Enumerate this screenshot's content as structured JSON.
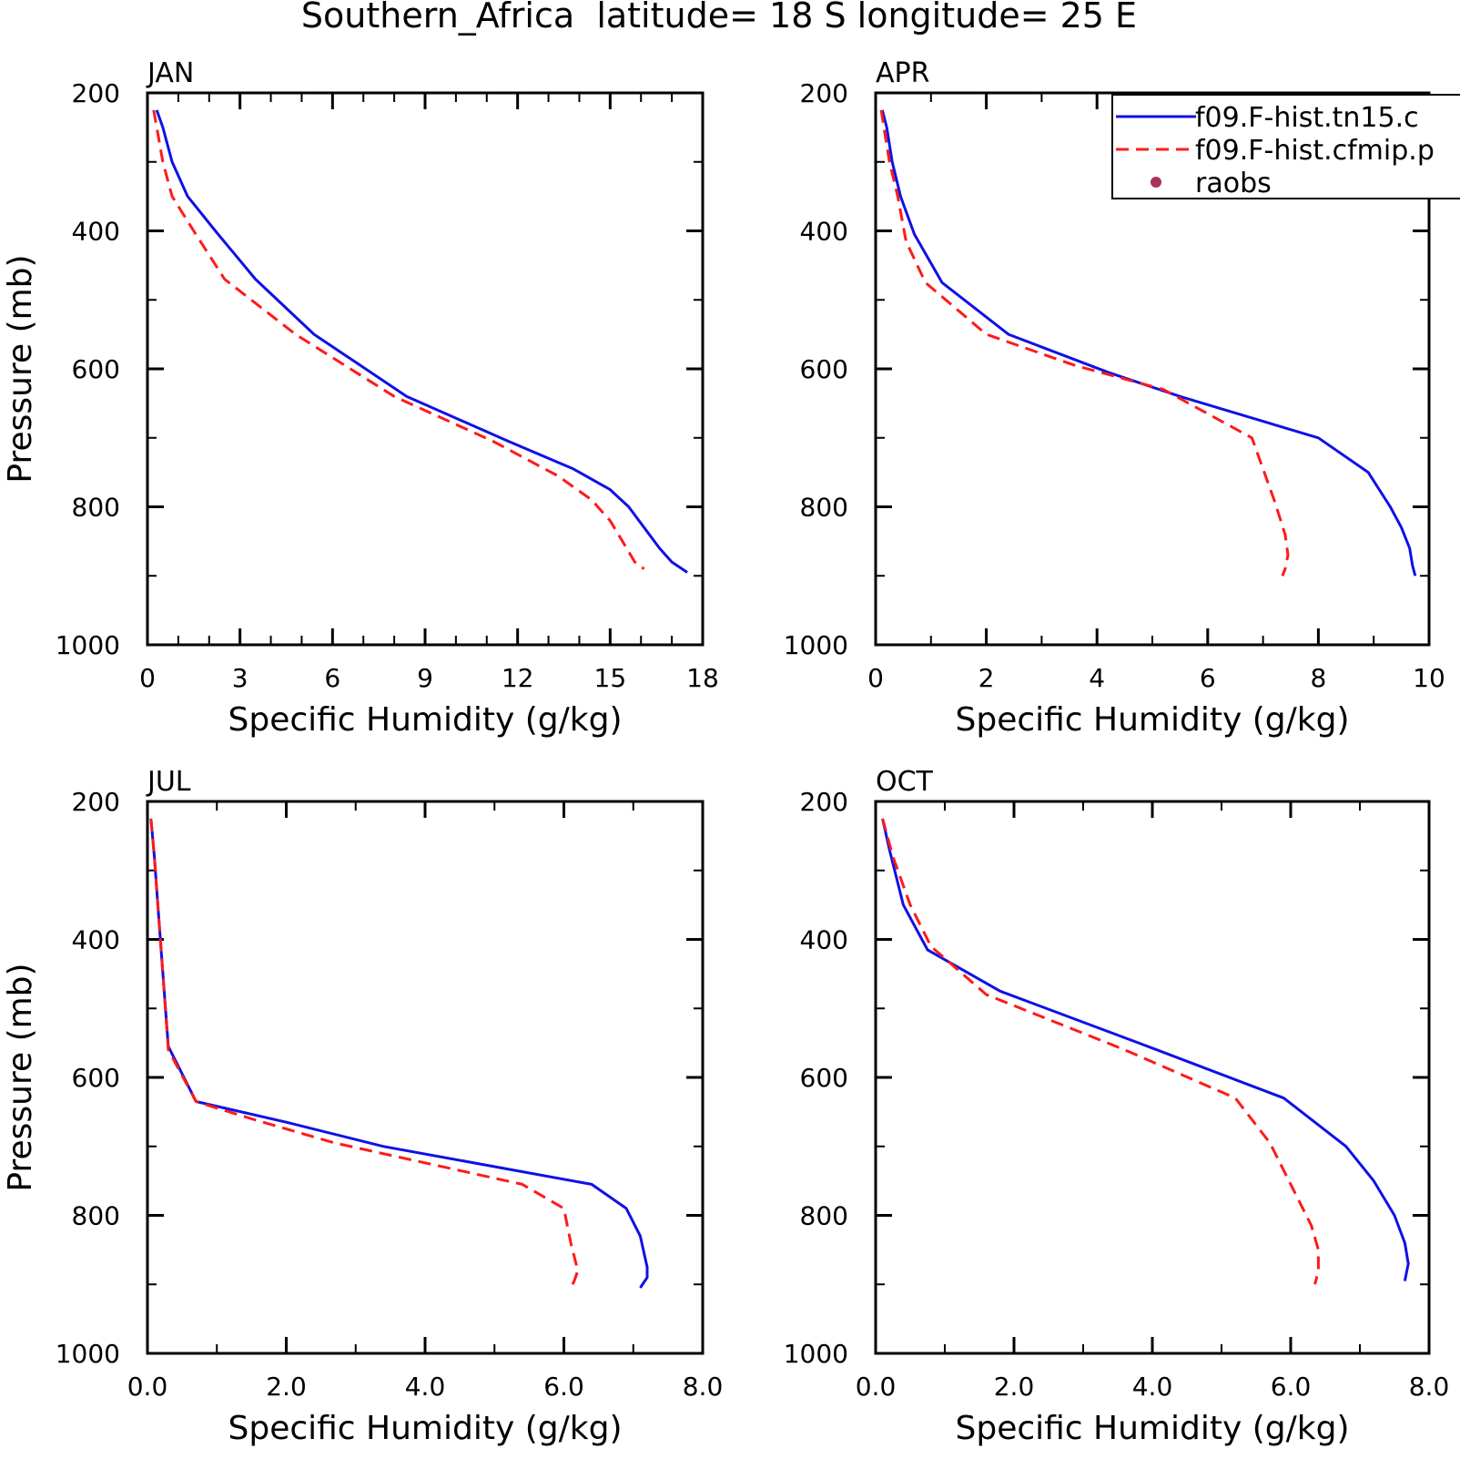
{
  "figure": {
    "title": "Southern_Africa  latitude= 18 S longitude= 25 E"
  },
  "legend": {
    "entries": [
      {
        "label": "f09.F-hist.tn15.c",
        "color": "#1010e6",
        "dash": "solid"
      },
      {
        "label": "f09.F-hist.cfmip.p",
        "color": "#ff1a1a",
        "dash": "dashed"
      },
      {
        "label": "raobs",
        "color": "#a8335a",
        "dash": "marker"
      }
    ]
  },
  "chart_data": [
    {
      "type": "line",
      "panel": "JAN",
      "xlabel": "Specific Humidity (g/kg)",
      "ylabel": "Pressure (mb)",
      "xlim": [
        0,
        18
      ],
      "ylim": [
        1000,
        200
      ],
      "xticks": [
        "0",
        "3",
        "6",
        "9",
        "12",
        "15",
        "18"
      ],
      "yticks": [
        "200",
        "400",
        "600",
        "800",
        "1000"
      ],
      "series": [
        {
          "name": "f09.F-hist.tn15.c",
          "color": "#1010e6",
          "dash": "solid",
          "points": [
            [
              0.3,
              225
            ],
            [
              0.5,
              250
            ],
            [
              0.8,
              300
            ],
            [
              1.3,
              350
            ],
            [
              2.2,
              400
            ],
            [
              3.5,
              470
            ],
            [
              5.4,
              550
            ],
            [
              8.4,
              640
            ],
            [
              11.7,
              705
            ],
            [
              13.8,
              745
            ],
            [
              15.0,
              775
            ],
            [
              15.6,
              800
            ],
            [
              16.1,
              830
            ],
            [
              16.6,
              860
            ],
            [
              17.0,
              880
            ],
            [
              17.5,
              895
            ]
          ]
        },
        {
          "name": "f09.F-hist.cfmip.p",
          "color": "#ff1a1a",
          "dash": "dashed",
          "points": [
            [
              0.2,
              225
            ],
            [
              0.3,
              250
            ],
            [
              0.5,
              300
            ],
            [
              0.8,
              350
            ],
            [
              1.5,
              400
            ],
            [
              2.5,
              470
            ],
            [
              4.8,
              550
            ],
            [
              8.0,
              640
            ],
            [
              11.2,
              705
            ],
            [
              13.3,
              755
            ],
            [
              14.4,
              790
            ],
            [
              15.0,
              820
            ],
            [
              15.4,
              850
            ],
            [
              15.8,
              880
            ],
            [
              16.1,
              890
            ]
          ]
        }
      ]
    },
    {
      "type": "line",
      "panel": "APR",
      "xlabel": "Specific Humidity (g/kg)",
      "ylabel": "",
      "xlim": [
        0,
        10
      ],
      "ylim": [
        1000,
        200
      ],
      "xticks": [
        "0",
        "2",
        "4",
        "6",
        "8",
        "10"
      ],
      "yticks": [
        "200",
        "400",
        "600",
        "800",
        "1000"
      ],
      "series": [
        {
          "name": "f09.F-hist.tn15.c",
          "color": "#1010e6",
          "dash": "solid",
          "points": [
            [
              0.12,
              225
            ],
            [
              0.2,
              250
            ],
            [
              0.3,
              300
            ],
            [
              0.45,
              350
            ],
            [
              0.7,
              405
            ],
            [
              1.2,
              475
            ],
            [
              2.4,
              550
            ],
            [
              4.2,
              605
            ],
            [
              5.5,
              640
            ],
            [
              8.0,
              700
            ],
            [
              8.9,
              750
            ],
            [
              9.3,
              800
            ],
            [
              9.5,
              830
            ],
            [
              9.65,
              860
            ],
            [
              9.7,
              885
            ],
            [
              9.75,
              900
            ]
          ]
        },
        {
          "name": "f09.F-hist.cfmip.p",
          "color": "#ff1a1a",
          "dash": "dashed",
          "points": [
            [
              0.1,
              225
            ],
            [
              0.15,
              250
            ],
            [
              0.25,
              300
            ],
            [
              0.4,
              350
            ],
            [
              0.55,
              415
            ],
            [
              0.9,
              475
            ],
            [
              2.0,
              550
            ],
            [
              3.6,
              595
            ],
            [
              5.2,
              630
            ],
            [
              6.8,
              700
            ],
            [
              7.2,
              790
            ],
            [
              7.4,
              840
            ],
            [
              7.45,
              870
            ],
            [
              7.4,
              890
            ],
            [
              7.35,
              900
            ]
          ]
        }
      ]
    },
    {
      "type": "line",
      "panel": "JUL",
      "xlabel": "Specific Humidity (g/kg)",
      "ylabel": "Pressure (mb)",
      "xlim": [
        0,
        8
      ],
      "ylim": [
        1000,
        200
      ],
      "xticks": [
        "0.0",
        "2.0",
        "4.0",
        "6.0",
        "8.0"
      ],
      "yticks": [
        "200",
        "400",
        "600",
        "800",
        "1000"
      ],
      "series": [
        {
          "name": "f09.F-hist.tn15.c",
          "color": "#1010e6",
          "dash": "solid",
          "points": [
            [
              0.05,
              225
            ],
            [
              0.1,
              280
            ],
            [
              0.15,
              350
            ],
            [
              0.2,
              420
            ],
            [
              0.3,
              555
            ],
            [
              0.7,
              635
            ],
            [
              2.0,
              665
            ],
            [
              3.4,
              700
            ],
            [
              6.4,
              755
            ],
            [
              6.9,
              790
            ],
            [
              7.1,
              830
            ],
            [
              7.2,
              875
            ],
            [
              7.2,
              890
            ],
            [
              7.1,
              905
            ]
          ]
        },
        {
          "name": "f09.F-hist.cfmip.p",
          "color": "#ff1a1a",
          "dash": "dashed",
          "points": [
            [
              0.05,
              225
            ],
            [
              0.1,
              280
            ],
            [
              0.15,
              350
            ],
            [
              0.2,
              420
            ],
            [
              0.3,
              560
            ],
            [
              0.7,
              635
            ],
            [
              1.5,
              660
            ],
            [
              2.7,
              695
            ],
            [
              5.4,
              755
            ],
            [
              6.0,
              790
            ],
            [
              6.1,
              840
            ],
            [
              6.2,
              880
            ],
            [
              6.15,
              895
            ],
            [
              6.1,
              905
            ]
          ]
        }
      ]
    },
    {
      "type": "line",
      "panel": "OCT",
      "xlabel": "Specific Humidity (g/kg)",
      "ylabel": "",
      "xlim": [
        0,
        8
      ],
      "ylim": [
        1000,
        200
      ],
      "xticks": [
        "0.0",
        "2.0",
        "4.0",
        "6.0",
        "8.0"
      ],
      "yticks": [
        "200",
        "400",
        "600",
        "800",
        "1000"
      ],
      "series": [
        {
          "name": "f09.F-hist.tn15.c",
          "color": "#1010e6",
          "dash": "solid",
          "points": [
            [
              0.1,
              225
            ],
            [
              0.2,
              270
            ],
            [
              0.4,
              350
            ],
            [
              0.75,
              415
            ],
            [
              1.8,
              475
            ],
            [
              3.8,
              550
            ],
            [
              5.9,
              630
            ],
            [
              6.8,
              700
            ],
            [
              7.2,
              750
            ],
            [
              7.5,
              800
            ],
            [
              7.65,
              840
            ],
            [
              7.7,
              870
            ],
            [
              7.65,
              895
            ]
          ]
        },
        {
          "name": "f09.F-hist.cfmip.p",
          "color": "#ff1a1a",
          "dash": "dashed",
          "points": [
            [
              0.1,
              225
            ],
            [
              0.25,
              280
            ],
            [
              0.5,
              350
            ],
            [
              0.8,
              410
            ],
            [
              1.6,
              480
            ],
            [
              3.6,
              560
            ],
            [
              5.2,
              630
            ],
            [
              5.7,
              695
            ],
            [
              6.0,
              755
            ],
            [
              6.3,
              815
            ],
            [
              6.4,
              850
            ],
            [
              6.4,
              880
            ],
            [
              6.35,
              900
            ]
          ]
        }
      ]
    }
  ]
}
